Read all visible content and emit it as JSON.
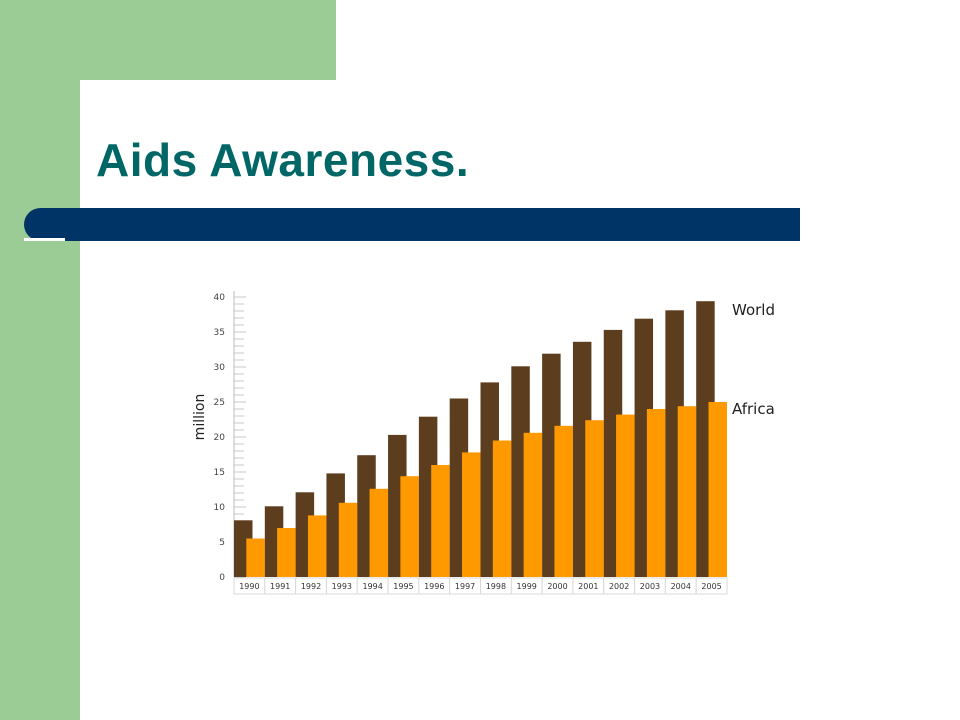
{
  "slide": {
    "title": "Aids Awareness.",
    "colors": {
      "green_accent": "#9ccc95",
      "title_text": "#006666",
      "title_bar": "#003366"
    }
  },
  "chart_data": {
    "type": "bar",
    "title": "",
    "xlabel": "",
    "ylabel": "million",
    "ylim": [
      0,
      40
    ],
    "yticks": [
      0,
      5,
      10,
      15,
      20,
      25,
      30,
      35,
      40
    ],
    "grid": false,
    "legend": "inline labels at right end of bars",
    "categories": [
      "1990",
      "1991",
      "1992",
      "1993",
      "1994",
      "1995",
      "1996",
      "1997",
      "1998",
      "1999",
      "2000",
      "2001",
      "2002",
      "2003",
      "2004",
      "2005"
    ],
    "series": [
      {
        "name": "World",
        "color": "#5c3d1e",
        "values": [
          8.1,
          10.1,
          12.1,
          14.8,
          17.4,
          20.3,
          22.9,
          25.5,
          27.8,
          30.1,
          31.9,
          33.6,
          35.3,
          36.9,
          38.1,
          39.4
        ]
      },
      {
        "name": "Africa",
        "color": "#ff9900",
        "values": [
          5.5,
          7.0,
          8.8,
          10.6,
          12.6,
          14.4,
          16.0,
          17.8,
          19.5,
          20.6,
          21.6,
          22.4,
          23.2,
          24.0,
          24.4,
          25.0
        ]
      }
    ]
  }
}
